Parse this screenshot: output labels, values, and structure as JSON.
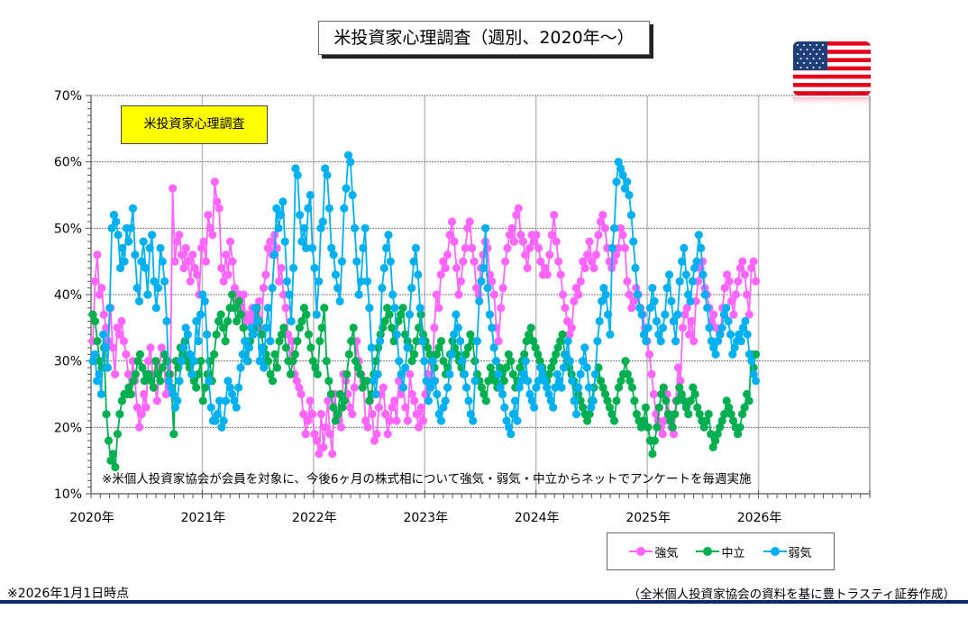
{
  "title": "米投資家心理調査（週別、2020年～）",
  "flag_icon": "us-flag-icon",
  "footer": {
    "as_of": "※2026年1月1日時点",
    "source": "（全米個人投資家協会の資料を基に豊トラスティ証券作成）"
  },
  "colors": {
    "bullish": "#ff66ff",
    "neutral": "#00b050",
    "bearish": "#00b0f0",
    "rule": "#0d2a66",
    "inset_bg": "#ffff00"
  },
  "chart_data": {
    "type": "line",
    "title": "米投資家心理調査",
    "annotation": "※米個人投資家協会が会員を対象に、今後6ヶ月の株式相について強気・弱気・中立からネットでアンケートを毎週実施",
    "xlabel": "",
    "ylabel": "",
    "x_tick_labels": [
      "2020年",
      "2021年",
      "2022年",
      "2023年",
      "2024年",
      "2025年",
      "2026年"
    ],
    "x_range": [
      2020,
      2027
    ],
    "y_tick_labels": [
      "10%",
      "20%",
      "30%",
      "40%",
      "50%",
      "60%",
      "70%"
    ],
    "ylim": [
      10,
      70
    ],
    "y_ticks": [
      10,
      20,
      30,
      40,
      50,
      60,
      70
    ],
    "grid": true,
    "legend_position": "bottom-right",
    "frequency": "weekly",
    "start": "2020-01",
    "series": [
      {
        "name": "強気",
        "key": "bullish",
        "values": [
          33,
          42,
          46,
          40,
          41,
          37,
          35,
          33,
          38,
          32,
          28,
          35,
          34,
          36,
          33,
          31,
          28,
          25,
          30,
          27,
          23,
          20,
          22,
          25,
          23,
          30,
          32,
          28,
          26,
          24,
          29,
          32,
          31,
          25,
          30,
          28,
          56,
          45,
          48,
          49,
          46,
          44,
          47,
          45,
          42,
          46,
          44,
          43,
          40,
          47,
          48,
          45,
          52,
          50,
          49,
          57,
          54,
          53,
          44,
          42,
          46,
          43,
          48,
          45,
          41,
          39,
          40,
          38,
          40,
          36,
          37,
          36,
          38,
          37,
          35,
          39,
          34,
          41,
          43,
          47,
          48,
          46,
          49,
          47,
          42,
          44,
          40,
          38,
          34,
          30,
          33,
          28,
          27,
          26,
          25,
          22,
          19,
          21,
          24,
          22,
          19,
          18,
          16,
          22,
          17,
          20,
          24,
          19,
          16,
          25,
          22,
          21,
          20,
          28,
          27,
          25,
          23,
          22,
          26,
          33,
          30,
          28,
          27,
          21,
          20,
          24,
          22,
          18,
          19,
          23,
          25,
          26,
          22,
          19,
          21,
          23,
          24,
          21,
          27,
          25,
          26,
          23,
          21,
          28,
          25,
          24,
          22,
          20,
          23,
          21,
          25,
          28,
          31,
          27,
          35,
          40,
          38,
          43,
          45,
          44,
          46,
          49,
          51,
          48,
          44,
          40,
          42,
          45,
          47,
          50,
          51,
          47,
          45,
          41,
          40,
          44,
          46,
          48,
          47,
          43,
          42,
          40,
          35,
          33,
          38,
          41,
          45,
          47,
          49,
          50,
          48,
          52,
          53,
          49,
          48,
          46,
          44,
          47,
          49,
          48,
          49,
          47,
          45,
          43,
          44,
          43,
          46,
          49,
          52,
          48,
          45,
          43,
          40,
          38,
          36,
          34,
          35,
          39,
          41,
          40,
          42,
          45,
          44,
          46,
          48,
          45,
          44,
          46,
          49,
          51,
          52,
          50,
          47,
          45,
          44,
          45,
          46,
          47,
          50,
          49,
          47,
          42,
          40,
          38,
          39,
          41,
          40,
          38,
          37,
          35,
          33,
          31,
          28,
          25,
          22,
          21,
          20,
          19,
          21,
          25,
          22,
          20,
          19,
          24,
          29,
          27,
          35,
          37,
          38,
          34,
          36,
          33,
          39,
          42,
          44,
          45,
          41,
          40,
          38,
          36,
          37,
          35,
          33,
          34,
          38,
          41,
          43,
          42,
          39,
          37,
          40,
          42,
          44,
          45,
          43,
          40,
          37,
          44,
          45,
          42
        ]
      },
      {
        "name": "中立",
        "key": "neutral",
        "values": [
          37,
          36,
          33,
          30,
          29,
          32,
          22,
          18,
          15,
          16,
          14,
          19,
          22,
          24,
          25,
          25,
          26,
          25,
          27,
          28,
          30,
          31,
          29,
          27,
          28,
          28,
          27,
          26,
          30,
          28,
          27,
          29,
          31,
          30,
          28,
          26,
          19,
          30,
          29,
          32,
          31,
          33,
          30,
          29,
          28,
          27,
          26,
          28,
          30,
          24,
          26,
          28,
          30,
          27,
          31,
          34,
          36,
          37,
          35,
          33,
          36,
          38,
          40,
          38,
          36,
          39,
          37,
          35,
          33,
          30,
          33,
          34,
          35,
          38,
          36,
          34,
          32,
          31,
          30,
          28,
          27,
          31,
          29,
          33,
          34,
          35,
          32,
          30,
          28,
          30,
          31,
          33,
          35,
          36,
          38,
          37,
          34,
          32,
          30,
          29,
          28,
          33,
          35,
          38,
          30,
          27,
          25,
          23,
          21,
          22,
          25,
          23,
          24,
          28,
          31,
          33,
          35,
          30,
          29,
          28,
          26,
          27,
          27,
          24,
          25,
          28,
          30,
          32,
          34,
          35,
          36,
          38,
          37,
          35,
          33,
          34,
          36,
          37,
          38,
          34,
          33,
          32,
          30,
          31,
          33,
          35,
          37,
          34,
          33,
          32,
          31,
          30,
          29,
          31,
          32,
          33,
          30,
          28,
          29,
          31,
          33,
          32,
          31,
          30,
          29,
          28,
          31,
          32,
          34,
          33,
          30,
          28,
          27,
          26,
          25,
          24,
          27,
          29,
          28,
          27,
          26,
          29,
          28,
          27,
          29,
          31,
          30,
          28,
          26,
          27,
          29,
          30,
          31,
          33,
          34,
          35,
          33,
          32,
          31,
          30,
          29,
          28,
          27,
          28,
          29,
          30,
          31,
          32,
          33,
          34,
          31,
          30,
          29,
          28,
          27,
          26,
          25,
          24,
          23,
          22,
          21,
          22,
          24,
          26,
          28,
          29,
          27,
          26,
          25,
          24,
          23,
          22,
          21,
          24,
          26,
          27,
          28,
          30,
          28,
          27,
          26,
          24,
          22,
          21,
          20,
          21,
          23,
          20,
          18,
          16,
          18,
          20,
          23,
          25,
          26,
          24,
          22,
          21,
          20,
          22,
          24,
          26,
          25,
          24,
          23,
          22,
          24,
          26,
          25,
          23,
          22,
          21,
          20,
          21,
          22,
          19,
          17,
          18,
          19,
          20,
          21,
          22,
          24,
          23,
          22,
          21,
          20,
          19,
          20,
          22,
          23,
          25,
          24,
          31,
          29,
          31
        ]
      },
      {
        "name": "弱気",
        "key": "bearish",
        "values": [
          30,
          31,
          27,
          28,
          25,
          34,
          32,
          29,
          38,
          50,
          52,
          51,
          49,
          44,
          47,
          45,
          50,
          48,
          50,
          53,
          46,
          41,
          39,
          45,
          48,
          44,
          40,
          47,
          49,
          42,
          38,
          41,
          47,
          45,
          42,
          36,
          27,
          26,
          25,
          23,
          24,
          27,
          30,
          32,
          35,
          34,
          31,
          28,
          30,
          36,
          33,
          37,
          40,
          39,
          34,
          27,
          23,
          21,
          21,
          22,
          24,
          20,
          21,
          24,
          27,
          26,
          25,
          24,
          23,
          26,
          29,
          31,
          33,
          30,
          32,
          35,
          34,
          38,
          36,
          30,
          32,
          29,
          35,
          38,
          33,
          41,
          46,
          53,
          50,
          52,
          54,
          48,
          42,
          40,
          36,
          44,
          59,
          58,
          52,
          48,
          50,
          47,
          53,
          55,
          47,
          44,
          37,
          42,
          50,
          51,
          59,
          58,
          53,
          47,
          46,
          43,
          41,
          39,
          45,
          53,
          56,
          61,
          60,
          55,
          50,
          45,
          40,
          42,
          47,
          50,
          42,
          38,
          32,
          27,
          25,
          28,
          33,
          41,
          44,
          47,
          49,
          45,
          40,
          38,
          34,
          30,
          28,
          26,
          29,
          32,
          37,
          41,
          45,
          47,
          43,
          38,
          33,
          30,
          27,
          24,
          26,
          30,
          27,
          25,
          22,
          21,
          23,
          24,
          26,
          28,
          31,
          34,
          37,
          35,
          33,
          30,
          28,
          26,
          24,
          22,
          21,
          27,
          33,
          39,
          42,
          44,
          50,
          41,
          37,
          35,
          32,
          30,
          28,
          26,
          25,
          23,
          21,
          20,
          19,
          22,
          24,
          21,
          26,
          27,
          28,
          30,
          27,
          25,
          24,
          23,
          26,
          27,
          29,
          28,
          27,
          26,
          25,
          24,
          23,
          26,
          28,
          27,
          26,
          29,
          31,
          33,
          30,
          27,
          24,
          22,
          26,
          28,
          30,
          32,
          29,
          26,
          23,
          24,
          28,
          33,
          36,
          39,
          41,
          40,
          37,
          34,
          47,
          50,
          57,
          60,
          59,
          58,
          56,
          57,
          55,
          52,
          48,
          44,
          40,
          38,
          37,
          34,
          33,
          35,
          38,
          41,
          39,
          36,
          34,
          33,
          35,
          37,
          41,
          43,
          39,
          36,
          33,
          37,
          42,
          45,
          47,
          43,
          40,
          39,
          42,
          44,
          45,
          49,
          47,
          43,
          40,
          38,
          35,
          33,
          32,
          31,
          33,
          34,
          35,
          37,
          38,
          36,
          34,
          31,
          32,
          33,
          34,
          33,
          35,
          36,
          34,
          31,
          30,
          28,
          27
        ]
      }
    ]
  }
}
